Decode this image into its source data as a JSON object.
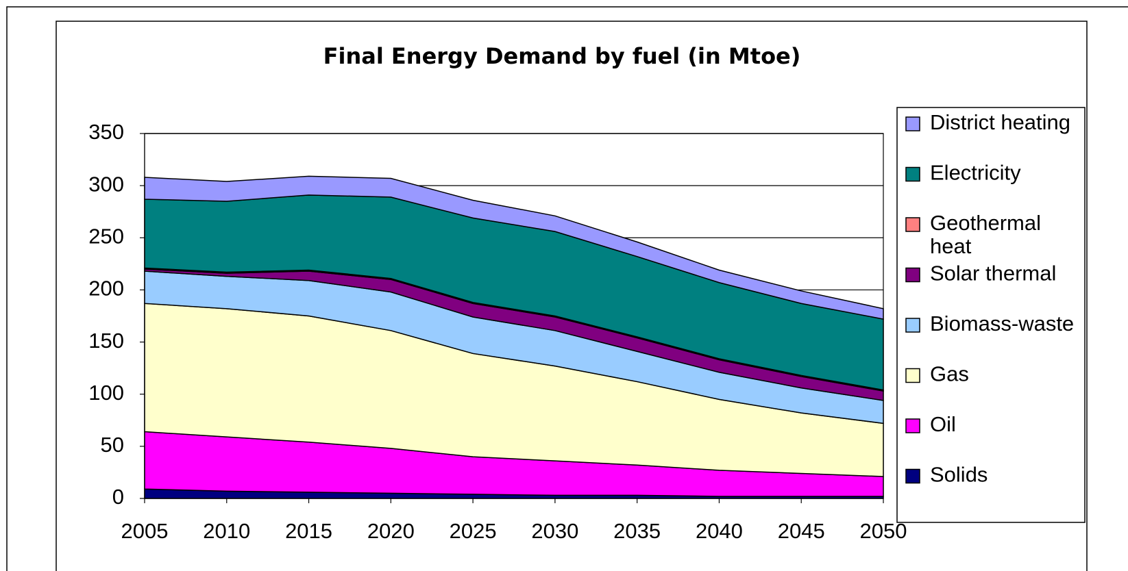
{
  "chart_data": {
    "type": "stacked_area",
    "title": "Final Energy Demand by fuel (in Mtoe)",
    "x": [
      2005,
      2010,
      2015,
      2020,
      2025,
      2030,
      2035,
      2040,
      2045,
      2050
    ],
    "xlim": [
      2005,
      2050
    ],
    "xticks": [
      2005,
      2010,
      2015,
      2020,
      2025,
      2030,
      2035,
      2040,
      2045,
      2050
    ],
    "ylim": [
      0,
      350
    ],
    "yticks": [
      0,
      50,
      100,
      150,
      200,
      250,
      300,
      350
    ],
    "grid": true,
    "legend": "right",
    "series": [
      {
        "name": "Solids",
        "color": "#000080",
        "values": [
          9,
          7,
          6,
          5,
          4,
          3,
          3,
          2,
          2,
          2
        ]
      },
      {
        "name": "Oil",
        "color": "#ff00ff",
        "values": [
          55,
          52,
          48,
          43,
          36,
          33,
          29,
          25,
          22,
          19
        ]
      },
      {
        "name": "Gas",
        "color": "#ffffcc",
        "values": [
          123,
          123,
          121,
          113,
          99,
          91,
          80,
          68,
          58,
          51
        ]
      },
      {
        "name": "Biomass-waste",
        "color": "#99ccff",
        "values": [
          31,
          31,
          34,
          37,
          35,
          34,
          29,
          26,
          24,
          22
        ]
      },
      {
        "name": "Solar thermal",
        "color": "#800080",
        "values": [
          2,
          3,
          9,
          12,
          13,
          13,
          13,
          12,
          11,
          9
        ]
      },
      {
        "name": "Geothermal heat",
        "color": "#ff8080",
        "values": [
          1,
          1,
          1,
          1,
          1,
          1,
          1,
          1,
          1,
          1
        ]
      },
      {
        "name": "Electricity",
        "color": "#008080",
        "values": [
          66,
          68,
          72,
          78,
          81,
          81,
          77,
          73,
          69,
          68
        ]
      },
      {
        "name": "District heating",
        "color": "#9999ff",
        "values": [
          21,
          19,
          18,
          18,
          17,
          15,
          14,
          12,
          12,
          10
        ]
      }
    ]
  }
}
